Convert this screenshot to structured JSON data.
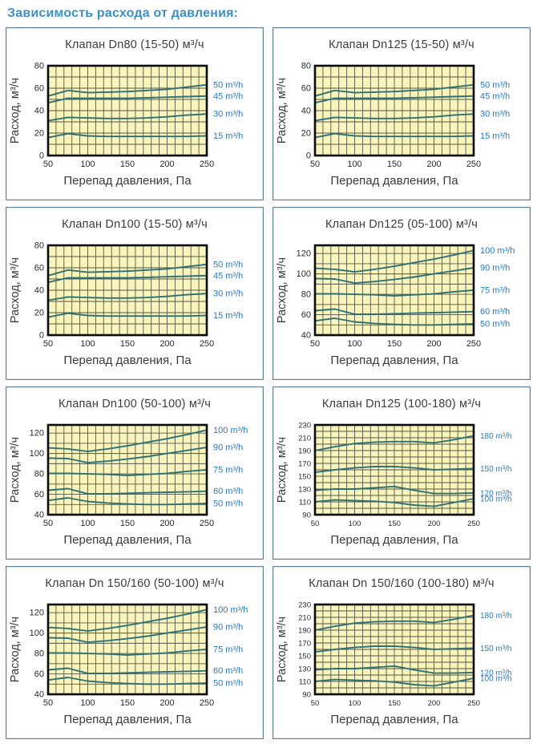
{
  "page_title": "Зависимость расхода от давления:",
  "colors": {
    "title_blue": "#3e8fc4",
    "label_blue": "#2b7ab8",
    "line_teal": "#2e7175",
    "plot_bg": "#f8f4bb",
    "grid_line": "#54574a",
    "plot_border": "#0a0a0a",
    "panel_border": "#5f8096",
    "text_dark": "#3a3a3a",
    "tick_text": "#2b2b2b"
  },
  "chart_data": [
    {
      "type": "line",
      "title": "Клапан Dn80 (15-50) м³/ч",
      "xlabel": "Перепад давления, Па",
      "ylabel": "Расход, м³/ч",
      "x": [
        50,
        75,
        100,
        125,
        150,
        175,
        200,
        225,
        250
      ],
      "xlim": [
        50,
        250
      ],
      "ylim": [
        0,
        80
      ],
      "xticks": [
        50,
        100,
        150,
        200,
        250
      ],
      "yticks": [
        0,
        20,
        40,
        60,
        80
      ],
      "grid_step": 10,
      "grid": true,
      "legend_position": "right",
      "series": [
        {
          "name": "50 m³/h",
          "values": [
            53,
            58,
            56,
            56.5,
            57,
            58,
            59,
            61,
            63
          ]
        },
        {
          "name": "45 m³/h",
          "values": [
            47,
            51,
            51,
            51,
            51,
            51.5,
            52,
            52.5,
            53
          ]
        },
        {
          "name": "30 m³/h",
          "values": [
            31,
            34,
            33.5,
            33,
            33,
            33.5,
            34.5,
            36,
            37
          ]
        },
        {
          "name": "15 m³/h",
          "values": [
            16,
            19.5,
            17.5,
            17,
            17,
            17,
            17,
            17,
            17.5
          ]
        }
      ]
    },
    {
      "type": "line",
      "title": "Клапан Dn125 (15-50) м³/ч",
      "xlabel": "Перепад давления, Па",
      "ylabel": "Расход, м³/ч",
      "x": [
        50,
        75,
        100,
        125,
        150,
        175,
        200,
        225,
        250
      ],
      "xlim": [
        50,
        250
      ],
      "ylim": [
        0,
        80
      ],
      "xticks": [
        50,
        100,
        150,
        200,
        250
      ],
      "yticks": [
        0,
        20,
        40,
        60,
        80
      ],
      "grid_step": 10,
      "grid": true,
      "legend_position": "right",
      "series": [
        {
          "name": "50 m³/h",
          "values": [
            53,
            58,
            56,
            56.5,
            57,
            58,
            59,
            61,
            63
          ]
        },
        {
          "name": "45 m³/h",
          "values": [
            47,
            51,
            51,
            51,
            51,
            51.5,
            52,
            52.5,
            53
          ]
        },
        {
          "name": "30 m³/h",
          "values": [
            31,
            34,
            33.5,
            33,
            33,
            33.5,
            34.5,
            36,
            37
          ]
        },
        {
          "name": "15 m³/h",
          "values": [
            16,
            19.5,
            17.5,
            17,
            17,
            17,
            17,
            17,
            17.5
          ]
        }
      ]
    },
    {
      "type": "line",
      "title": "Клапан Dn100 (15-50) м³/ч",
      "xlabel": "Перепад давления, Па",
      "ylabel": "Расход, м³/ч",
      "x": [
        50,
        75,
        100,
        125,
        150,
        175,
        200,
        225,
        250
      ],
      "xlim": [
        50,
        250
      ],
      "ylim": [
        0,
        80
      ],
      "xticks": [
        50,
        100,
        150,
        200,
        250
      ],
      "yticks": [
        0,
        20,
        40,
        60,
        80
      ],
      "grid_step": 10,
      "grid": true,
      "legend_position": "right",
      "series": [
        {
          "name": "50 m³/h",
          "values": [
            53,
            58,
            56,
            56.5,
            57,
            58,
            59,
            61,
            63
          ]
        },
        {
          "name": "45 m³/h",
          "values": [
            47,
            51,
            51,
            51,
            51,
            51.5,
            52,
            52.5,
            53
          ]
        },
        {
          "name": "30 m³/h",
          "values": [
            31,
            34,
            33.5,
            33,
            33,
            33.5,
            34.5,
            36,
            37
          ]
        },
        {
          "name": "15 m³/h",
          "values": [
            16,
            19.5,
            17.5,
            17,
            17,
            17,
            17,
            17,
            17.5
          ]
        }
      ]
    },
    {
      "type": "line",
      "title": "Клапан Dn125 (05-100) м³/ч",
      "xlabel": "Перепад давления, Па",
      "ylabel": "Расход, м³/ч",
      "x": [
        50,
        75,
        100,
        125,
        150,
        175,
        200,
        225,
        250
      ],
      "xlim": [
        50,
        250
      ],
      "ylim": [
        40,
        128
      ],
      "xticks": [
        50,
        100,
        150,
        200,
        250
      ],
      "yticks": [
        40,
        60,
        80,
        100,
        120
      ],
      "grid_step": 10,
      "grid": true,
      "legend_position": "right",
      "series": [
        {
          "name": "100 m³/h",
          "values": [
            105.5,
            104.5,
            102,
            104.5,
            107.5,
            111,
            114.5,
            118.5,
            123
          ]
        },
        {
          "name": "90 m³/h",
          "values": [
            95.5,
            95,
            91,
            92.5,
            94.5,
            97,
            100,
            103,
            106
          ]
        },
        {
          "name": "75 m³/h",
          "values": [
            80.5,
            80.5,
            80,
            79.5,
            78.5,
            79.5,
            80.5,
            82.5,
            84
          ]
        },
        {
          "name": "60 m³/h",
          "values": [
            64,
            65.5,
            60.5,
            60.5,
            61,
            61.5,
            62,
            62.5,
            63
          ]
        },
        {
          "name": "50 m³/h",
          "values": [
            54,
            56.5,
            53,
            51.5,
            50.5,
            50,
            50,
            50.5,
            51
          ]
        }
      ]
    },
    {
      "type": "line",
      "title": "Клапан Dn100 (50-100) м³/ч",
      "xlabel": "Перепад давления, Па",
      "ylabel": "Расход, м³/ч",
      "x": [
        50,
        75,
        100,
        125,
        150,
        175,
        200,
        225,
        250
      ],
      "xlim": [
        50,
        250
      ],
      "ylim": [
        40,
        128
      ],
      "xticks": [
        50,
        100,
        150,
        200,
        250
      ],
      "yticks": [
        40,
        60,
        80,
        100,
        120
      ],
      "grid_step": 10,
      "grid": true,
      "legend_position": "right",
      "series": [
        {
          "name": "100 m³/h",
          "values": [
            105.5,
            104.5,
            102,
            104.5,
            107.5,
            111,
            114.5,
            118.5,
            123
          ]
        },
        {
          "name": "90 m³/h",
          "values": [
            95.5,
            95,
            91,
            92.5,
            94.5,
            97,
            100,
            103,
            106
          ]
        },
        {
          "name": "75 m³/h",
          "values": [
            80.5,
            80.5,
            80,
            79.5,
            78.5,
            79.5,
            80.5,
            82.5,
            84
          ]
        },
        {
          "name": "60 m³/h",
          "values": [
            64,
            65.5,
            60.5,
            60.5,
            61,
            61.5,
            62,
            62.5,
            63
          ]
        },
        {
          "name": "50 m³/h",
          "values": [
            54,
            56.5,
            53,
            51.5,
            50.5,
            50,
            50,
            50.5,
            51
          ]
        }
      ]
    },
    {
      "type": "line",
      "title": "Клапан Dn125 (100-180) м³/ч",
      "xlabel": "Перепад давления, Па",
      "ylabel": "Расход, м³/ч",
      "x": [
        50,
        75,
        100,
        125,
        150,
        175,
        200,
        225,
        250
      ],
      "xlim": [
        50,
        250
      ],
      "ylim": [
        90,
        230
      ],
      "xticks": [
        50,
        100,
        150,
        200,
        250
      ],
      "yticks": [
        90,
        110,
        130,
        150,
        170,
        190,
        210,
        230
      ],
      "grid_step": 10,
      "grid": true,
      "legend_position": "right",
      "series": [
        {
          "name": "180 m³/h",
          "values": [
            190,
            196,
            201,
            203,
            204,
            204,
            202,
            207,
            213
          ]
        },
        {
          "name": "150 m³/h",
          "values": [
            156,
            160,
            163,
            165,
            165,
            163,
            160,
            161,
            162
          ]
        },
        {
          "name": "120 m³/h",
          "values": [
            128,
            130,
            130,
            132,
            134,
            128,
            123,
            123,
            124
          ]
        },
        {
          "name": "100 m³/h",
          "values": [
            110,
            113,
            112,
            111,
            109,
            105,
            103,
            109,
            115
          ]
        }
      ]
    },
    {
      "type": "line",
      "title": "Клапан Dn 150/160 (50-100) м³/ч",
      "xlabel": "Перепад давления, Па",
      "ylabel": "Расход, м³/ч",
      "x": [
        50,
        75,
        100,
        125,
        150,
        175,
        200,
        225,
        250
      ],
      "xlim": [
        50,
        250
      ],
      "ylim": [
        40,
        128
      ],
      "xticks": [
        50,
        100,
        150,
        200,
        250
      ],
      "yticks": [
        40,
        60,
        80,
        100,
        120
      ],
      "grid_step": 10,
      "grid": true,
      "legend_position": "right",
      "series": [
        {
          "name": "100 m³/h",
          "values": [
            105.5,
            104.5,
            102,
            104.5,
            107.5,
            111,
            114.5,
            118.5,
            123
          ]
        },
        {
          "name": "90 m³/h",
          "values": [
            95.5,
            95,
            91,
            92.5,
            94.5,
            97,
            100,
            103,
            106
          ]
        },
        {
          "name": "75 m³/h",
          "values": [
            80.5,
            80.5,
            80,
            79.5,
            78.5,
            79.5,
            80.5,
            82.5,
            84
          ]
        },
        {
          "name": "60 m³/h",
          "values": [
            64,
            65.5,
            60.5,
            60.5,
            61,
            61.5,
            62,
            62.5,
            63
          ]
        },
        {
          "name": "50 m³/h",
          "values": [
            54,
            56.5,
            53,
            51.5,
            50.5,
            50,
            50,
            50.5,
            51
          ]
        }
      ]
    },
    {
      "type": "line",
      "title": "Клапан Dn 150/160 (100-180) м³/ч",
      "xlabel": "Перепад давления, Па",
      "ylabel": "Расход, м³/ч",
      "x": [
        50,
        75,
        100,
        125,
        150,
        175,
        200,
        225,
        250
      ],
      "xlim": [
        50,
        250
      ],
      "ylim": [
        90,
        230
      ],
      "xticks": [
        50,
        100,
        150,
        200,
        250
      ],
      "yticks": [
        90,
        110,
        130,
        150,
        170,
        190,
        210,
        230
      ],
      "grid_step": 10,
      "grid": true,
      "legend_position": "right",
      "series": [
        {
          "name": "180 m³/h",
          "values": [
            190,
            196,
            201,
            203,
            204,
            204,
            202,
            207,
            213
          ]
        },
        {
          "name": "150 m³/h",
          "values": [
            156,
            160,
            163,
            165,
            165,
            163,
            160,
            161,
            162
          ]
        },
        {
          "name": "120 m³/h",
          "values": [
            128,
            130,
            130,
            132,
            134,
            128,
            123,
            123,
            124
          ]
        },
        {
          "name": "100 m³/h",
          "values": [
            110,
            113,
            112,
            111,
            109,
            105,
            103,
            109,
            115
          ]
        }
      ]
    }
  ]
}
